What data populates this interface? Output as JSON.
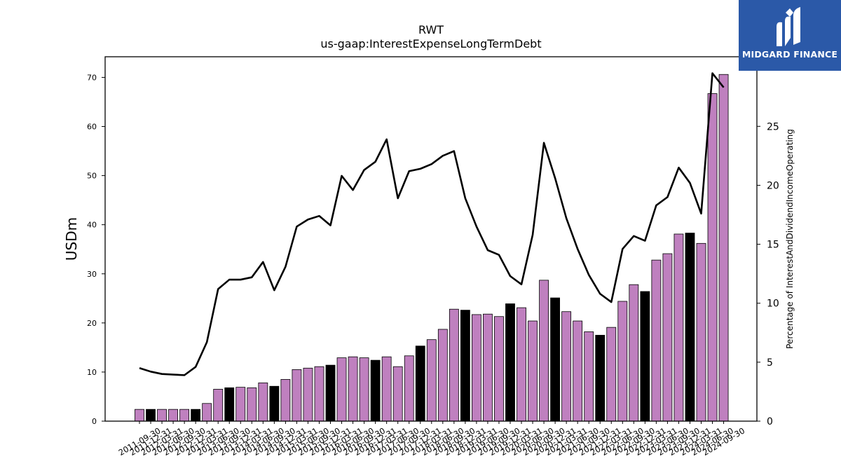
{
  "brand": {
    "name": "MIDGARD FINANCE",
    "color": "#2b59a8"
  },
  "chart_data": {
    "type": "bar+line",
    "title": "RWT",
    "subtitle": "us-gaap:InterestExpenseLongTermDebt",
    "ylabel": "USDm",
    "y2label": "Percentage of InterestAndDividendIncomeOperating",
    "ylim": [
      0,
      74.2
    ],
    "y2lim": [
      0,
      30.9
    ],
    "yticks": [
      0,
      10,
      20,
      30,
      40,
      50,
      60,
      70
    ],
    "y2ticks": [
      0,
      5,
      10,
      15,
      20,
      25
    ],
    "bar_colors": {
      "default": "#bf80bf",
      "highlight": "#000000"
    },
    "categories": [
      "2011-09-30",
      "2011-12-31",
      "2012-03-31",
      "2012-06-30",
      "2012-09-30",
      "2012-12-31",
      "2013-03-31",
      "2013-06-30",
      "2013-09-30",
      "2013-12-31",
      "2014-03-31",
      "2014-06-30",
      "2014-09-30",
      "2014-12-31",
      "2015-03-31",
      "2015-06-30",
      "2015-09-30",
      "2015-12-31",
      "2016-03-31",
      "2016-06-30",
      "2016-09-30",
      "2016-12-31",
      "2017-03-31",
      "2017-06-30",
      "2017-09-30",
      "2017-12-31",
      "2018-03-31",
      "2018-06-30",
      "2018-09-30",
      "2018-12-31",
      "2019-03-31",
      "2019-06-30",
      "2019-09-30",
      "2019-12-31",
      "2020-03-31",
      "2020-06-30",
      "2020-09-30",
      "2020-12-31",
      "2021-03-31",
      "2021-06-30",
      "2021-09-30",
      "2021-12-31",
      "2022-03-31",
      "2022-06-30",
      "2022-09-30",
      "2022-12-31",
      "2023-03-31",
      "2023-06-30",
      "2023-09-30",
      "2023-12-31",
      "2024-03-31",
      "2024-06-30",
      "2024-09-30"
    ],
    "series": [
      {
        "type": "bar",
        "axis": "left",
        "values": [
          2.4,
          2.4,
          2.4,
          2.4,
          2.4,
          2.4,
          3.6,
          6.5,
          6.8,
          6.9,
          6.8,
          7.8,
          7.1,
          8.5,
          10.5,
          10.8,
          11.1,
          11.4,
          12.9,
          13.1,
          12.9,
          12.4,
          13.1,
          11.1,
          13.3,
          15.3,
          16.6,
          18.7,
          22.8,
          22.6,
          21.7,
          21.8,
          21.3,
          23.9,
          23.1,
          20.4,
          28.7,
          25.1,
          22.3,
          20.4,
          18.2,
          17.5,
          19.1,
          24.4,
          27.8,
          26.4,
          32.8,
          34.1,
          38.1,
          38.3,
          36.2,
          66.7,
          70.6
        ],
        "highlight": [
          false,
          true,
          false,
          false,
          false,
          true,
          false,
          false,
          true,
          false,
          false,
          false,
          true,
          false,
          false,
          false,
          false,
          true,
          false,
          false,
          false,
          true,
          false,
          false,
          false,
          true,
          false,
          false,
          false,
          true,
          false,
          false,
          false,
          true,
          false,
          false,
          false,
          true,
          false,
          false,
          false,
          true,
          false,
          false,
          false,
          true,
          false,
          false,
          false,
          true,
          false,
          false,
          false
        ]
      },
      {
        "type": "line",
        "axis": "right",
        "color": "#000000",
        "values": [
          4.5,
          4.2,
          4.0,
          3.95,
          3.9,
          4.6,
          6.7,
          11.2,
          12.0,
          12.0,
          12.2,
          13.5,
          11.1,
          13.1,
          16.5,
          17.1,
          17.4,
          16.6,
          20.8,
          19.6,
          21.3,
          22.0,
          23.9,
          18.9,
          21.2,
          21.4,
          21.8,
          22.5,
          22.9,
          18.9,
          16.5,
          14.5,
          14.1,
          12.3,
          11.6,
          15.8,
          23.6,
          20.6,
          17.2,
          14.6,
          12.4,
          10.8,
          10.1,
          14.6,
          15.7,
          15.3,
          18.3,
          19.0,
          21.5,
          20.2,
          17.6,
          29.5,
          28.3
        ]
      }
    ]
  }
}
